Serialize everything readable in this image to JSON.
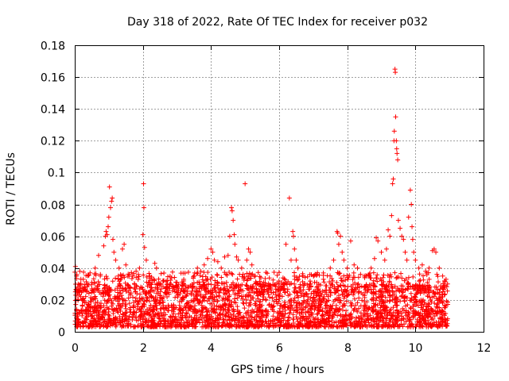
{
  "colors": {
    "points": "#ff0000"
  },
  "chart_data": {
    "type": "scatter",
    "title": "Day 318 of 2022, Rate Of TEC Index for receiver p032",
    "xlabel": "GPS time / hours",
    "ylabel": "ROTI / TECUs",
    "xlim": [
      0,
      12
    ],
    "ylim": [
      0,
      0.18
    ],
    "xticks": [
      0,
      2,
      4,
      6,
      8,
      10,
      12
    ],
    "xtick_labels": [
      "0",
      "2",
      "4",
      "6",
      "8",
      "10",
      "12"
    ],
    "yticks": [
      0,
      0.02,
      0.04,
      0.06,
      0.08,
      0.1,
      0.12,
      0.14,
      0.16,
      0.18
    ],
    "ytick_labels": [
      "0",
      "0.02",
      "0.04",
      "0.06",
      "0.08",
      "0.1",
      "0.12",
      "0.14",
      "0.16",
      "0.18"
    ],
    "grid": true,
    "marker": "+",
    "x_range_of_data": [
      0,
      10.95
    ],
    "dense_baseline_band": [
      0.003,
      0.03
    ],
    "series": [
      {
        "name": "ROTI p032",
        "points": [
          [
            0.02,
            0.041
          ],
          [
            0.05,
            0.035
          ],
          [
            0.1,
            0.03
          ],
          [
            0.15,
            0.038
          ],
          [
            0.25,
            0.033
          ],
          [
            0.3,
            0.028
          ],
          [
            0.45,
            0.037
          ],
          [
            0.5,
            0.031
          ],
          [
            0.6,
            0.04
          ],
          [
            0.7,
            0.048
          ],
          [
            0.75,
            0.035
          ],
          [
            0.85,
            0.054
          ],
          [
            0.9,
            0.06
          ],
          [
            0.92,
            0.063
          ],
          [
            0.95,
            0.061
          ],
          [
            0.98,
            0.066
          ],
          [
            1.0,
            0.072
          ],
          [
            1.02,
            0.091
          ],
          [
            1.05,
            0.078
          ],
          [
            1.08,
            0.082
          ],
          [
            1.1,
            0.084
          ],
          [
            1.12,
            0.058
          ],
          [
            1.15,
            0.05
          ],
          [
            1.2,
            0.045
          ],
          [
            1.3,
            0.04
          ],
          [
            1.4,
            0.052
          ],
          [
            1.45,
            0.055
          ],
          [
            1.5,
            0.042
          ],
          [
            1.6,
            0.036
          ],
          [
            1.7,
            0.035
          ],
          [
            1.8,
            0.038
          ],
          [
            1.9,
            0.04
          ],
          [
            2.0,
            0.061
          ],
          [
            2.02,
            0.093
          ],
          [
            2.03,
            0.078
          ],
          [
            2.05,
            0.053
          ],
          [
            2.1,
            0.045
          ],
          [
            2.2,
            0.035
          ],
          [
            2.35,
            0.043
          ],
          [
            2.4,
            0.04
          ],
          [
            2.6,
            0.032
          ],
          [
            2.8,
            0.03
          ],
          [
            3.0,
            0.031
          ],
          [
            3.2,
            0.033
          ],
          [
            3.4,
            0.029
          ],
          [
            3.5,
            0.035
          ],
          [
            3.6,
            0.04
          ],
          [
            3.7,
            0.038
          ],
          [
            3.8,
            0.042
          ],
          [
            3.9,
            0.046
          ],
          [
            4.0,
            0.052
          ],
          [
            4.05,
            0.05
          ],
          [
            4.1,
            0.045
          ],
          [
            4.2,
            0.044
          ],
          [
            4.3,
            0.04
          ],
          [
            4.4,
            0.047
          ],
          [
            4.5,
            0.048
          ],
          [
            4.55,
            0.06
          ],
          [
            4.6,
            0.078
          ],
          [
            4.62,
            0.076
          ],
          [
            4.65,
            0.07
          ],
          [
            4.68,
            0.061
          ],
          [
            4.7,
            0.055
          ],
          [
            4.75,
            0.047
          ],
          [
            4.8,
            0.045
          ],
          [
            4.9,
            0.04
          ],
          [
            5.0,
            0.093
          ],
          [
            5.05,
            0.045
          ],
          [
            5.1,
            0.052
          ],
          [
            5.15,
            0.05
          ],
          [
            5.2,
            0.042
          ],
          [
            5.3,
            0.035
          ],
          [
            5.5,
            0.03
          ],
          [
            5.7,
            0.027
          ],
          [
            5.9,
            0.025
          ],
          [
            6.0,
            0.028
          ],
          [
            6.2,
            0.055
          ],
          [
            6.3,
            0.084
          ],
          [
            6.35,
            0.045
          ],
          [
            6.4,
            0.063
          ],
          [
            6.42,
            0.06
          ],
          [
            6.45,
            0.052
          ],
          [
            6.5,
            0.045
          ],
          [
            6.55,
            0.04
          ],
          [
            6.7,
            0.035
          ],
          [
            6.9,
            0.03
          ],
          [
            7.1,
            0.031
          ],
          [
            7.3,
            0.033
          ],
          [
            7.5,
            0.04
          ],
          [
            7.6,
            0.045
          ],
          [
            7.7,
            0.063
          ],
          [
            7.72,
            0.062
          ],
          [
            7.75,
            0.055
          ],
          [
            7.8,
            0.06
          ],
          [
            7.85,
            0.05
          ],
          [
            7.9,
            0.045
          ],
          [
            8.0,
            0.04
          ],
          [
            8.1,
            0.057
          ],
          [
            8.2,
            0.042
          ],
          [
            8.3,
            0.04
          ],
          [
            8.5,
            0.035
          ],
          [
            8.7,
            0.04
          ],
          [
            8.8,
            0.046
          ],
          [
            8.85,
            0.059
          ],
          [
            8.9,
            0.057
          ],
          [
            9.0,
            0.05
          ],
          [
            9.1,
            0.045
          ],
          [
            9.15,
            0.052
          ],
          [
            9.2,
            0.064
          ],
          [
            9.25,
            0.06
          ],
          [
            9.3,
            0.073
          ],
          [
            9.33,
            0.093
          ],
          [
            9.35,
            0.096
          ],
          [
            9.37,
            0.12
          ],
          [
            9.38,
            0.126
          ],
          [
            9.4,
            0.165
          ],
          [
            9.41,
            0.163
          ],
          [
            9.42,
            0.135
          ],
          [
            9.44,
            0.12
          ],
          [
            9.45,
            0.115
          ],
          [
            9.46,
            0.112
          ],
          [
            9.48,
            0.108
          ],
          [
            9.5,
            0.07
          ],
          [
            9.55,
            0.065
          ],
          [
            9.6,
            0.06
          ],
          [
            9.65,
            0.058
          ],
          [
            9.7,
            0.05
          ],
          [
            9.75,
            0.045
          ],
          [
            9.8,
            0.072
          ],
          [
            9.85,
            0.089
          ],
          [
            9.88,
            0.08
          ],
          [
            9.9,
            0.066
          ],
          [
            9.92,
            0.058
          ],
          [
            9.95,
            0.05
          ],
          [
            10.0,
            0.045
          ],
          [
            10.1,
            0.04
          ],
          [
            10.2,
            0.042
          ],
          [
            10.3,
            0.038
          ],
          [
            10.4,
            0.04
          ],
          [
            10.5,
            0.051
          ],
          [
            10.55,
            0.052
          ],
          [
            10.6,
            0.05
          ],
          [
            10.7,
            0.04
          ],
          [
            10.8,
            0.035
          ],
          [
            10.9,
            0.033
          ]
        ]
      }
    ]
  }
}
